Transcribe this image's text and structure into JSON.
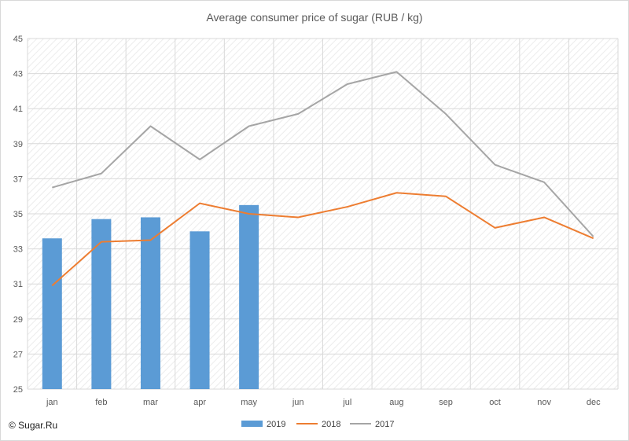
{
  "chart_data": {
    "type": "bar",
    "title": "Average consumer price of sugar (RUB / kg)",
    "xlabel": "",
    "ylabel": "",
    "categories": [
      "jan",
      "feb",
      "mar",
      "apr",
      "may",
      "jun",
      "jul",
      "aug",
      "sep",
      "oct",
      "nov",
      "dec"
    ],
    "ylim": [
      25,
      45
    ],
    "yticks": [
      25,
      27,
      29,
      31,
      33,
      35,
      37,
      39,
      41,
      43,
      45
    ],
    "grid": true,
    "legend_position": "bottom",
    "series": [
      {
        "name": "2019",
        "type": "bar",
        "color": "#5b9bd5",
        "values": [
          33.6,
          34.7,
          34.8,
          34.0,
          35.5,
          null,
          null,
          null,
          null,
          null,
          null,
          null
        ]
      },
      {
        "name": "2018",
        "type": "line",
        "color": "#ed7d31",
        "values": [
          30.9,
          33.4,
          33.5,
          35.6,
          35.0,
          34.8,
          35.4,
          36.2,
          36.0,
          34.2,
          34.8,
          33.6
        ]
      },
      {
        "name": "2017",
        "type": "line",
        "color": "#a5a5a5",
        "values": [
          36.5,
          37.3,
          40.0,
          38.1,
          40.0,
          40.7,
          42.4,
          43.1,
          40.7,
          37.8,
          36.8,
          33.7
        ]
      }
    ]
  },
  "credit": "© Sugar.Ru",
  "colors": {
    "grid": "#d9d9d9",
    "axis_text": "#595959",
    "hatch": "#e6e6e6"
  }
}
